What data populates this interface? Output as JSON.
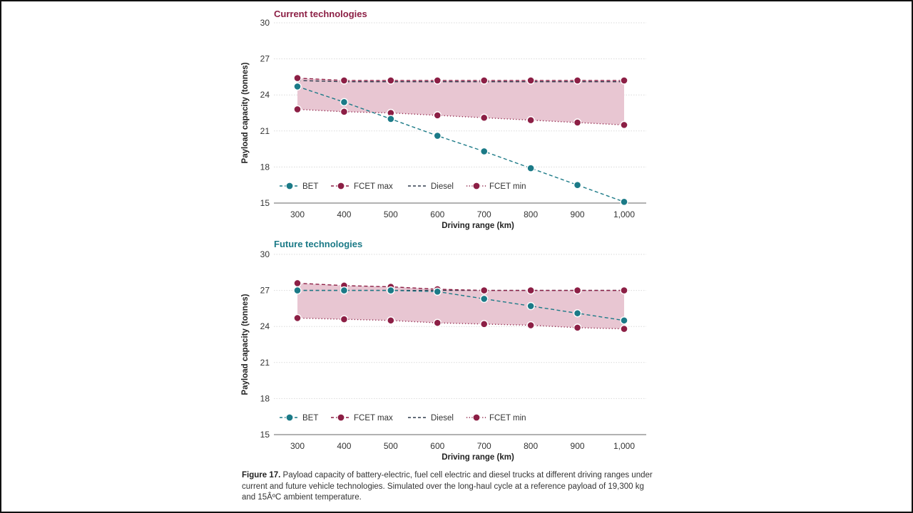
{
  "figure": {
    "caption_label": "Figure 17.",
    "caption_text": " Payload capacity of battery-electric, fuel cell electric and diesel trucks at different driving ranges under current and future vehicle technologies. Simulated over the long-haul cycle at a reference payload of 19,300 kg and 15ÂºC ambient temperature."
  },
  "colors": {
    "bet": "#1b7a87",
    "fcet": "#8c1f45",
    "diesel": "#2e3a4c",
    "band": "#e8c6d2",
    "grid": "#d9d9d9",
    "axis": "#666666"
  },
  "chart_data": [
    {
      "type": "line",
      "title": "Current technologies",
      "xlabel": "Driving range (km)",
      "ylabel": "Payload capacity (tonnes)",
      "categories": [
        "300",
        "400",
        "500",
        "600",
        "700",
        "800",
        "900",
        "1,000"
      ],
      "yticks": [
        "15",
        "18",
        "21",
        "24",
        "27",
        "30"
      ],
      "ylim": [
        15,
        30
      ],
      "grid": true,
      "legend_position": "bottom-left",
      "shaded_band": "between FCET min and FCET max",
      "series": [
        {
          "key": "bet",
          "name": "BET",
          "style": "dashed-markers",
          "values": [
            24.7,
            23.4,
            22.0,
            20.6,
            19.3,
            17.9,
            16.5,
            15.1
          ]
        },
        {
          "key": "fcet_max",
          "name": "FCET max",
          "style": "dashed-markers",
          "values": [
            25.4,
            25.2,
            25.2,
            25.2,
            25.2,
            25.2,
            25.2,
            25.2
          ]
        },
        {
          "key": "diesel",
          "name": "Diesel",
          "style": "dashed",
          "values": [
            25.2,
            25.1,
            25.1,
            25.1,
            25.1,
            25.1,
            25.1,
            25.1
          ]
        },
        {
          "key": "fcet_min",
          "name": "FCET min",
          "style": "dotted-markers",
          "values": [
            22.8,
            22.6,
            22.5,
            22.3,
            22.1,
            21.9,
            21.7,
            21.5
          ]
        }
      ]
    },
    {
      "type": "line",
      "title": "Future technologies",
      "xlabel": "Driving range (km)",
      "ylabel": "Payload capacity (tonnes)",
      "categories": [
        "300",
        "400",
        "500",
        "600",
        "700",
        "800",
        "900",
        "1,000"
      ],
      "yticks": [
        "15",
        "18",
        "21",
        "24",
        "27",
        "30"
      ],
      "ylim": [
        15,
        30
      ],
      "grid": true,
      "legend_position": "bottom-left",
      "shaded_band": "between FCET min and FCET max",
      "series": [
        {
          "key": "bet",
          "name": "BET",
          "style": "dashed-markers",
          "values": [
            27.0,
            27.0,
            27.0,
            26.9,
            26.3,
            25.7,
            25.1,
            24.5
          ]
        },
        {
          "key": "fcet_max",
          "name": "FCET max",
          "style": "dashed-markers",
          "values": [
            27.6,
            27.4,
            27.3,
            27.1,
            27.0,
            27.0,
            27.0,
            27.0
          ]
        },
        {
          "key": "diesel",
          "name": "Diesel",
          "style": "dashed",
          "values": [
            27.0,
            27.0,
            27.0,
            27.0,
            27.0,
            27.0,
            27.0,
            27.0
          ]
        },
        {
          "key": "fcet_min",
          "name": "FCET min",
          "style": "dotted-markers",
          "values": [
            24.7,
            24.6,
            24.5,
            24.3,
            24.2,
            24.1,
            23.9,
            23.8
          ]
        }
      ]
    }
  ]
}
